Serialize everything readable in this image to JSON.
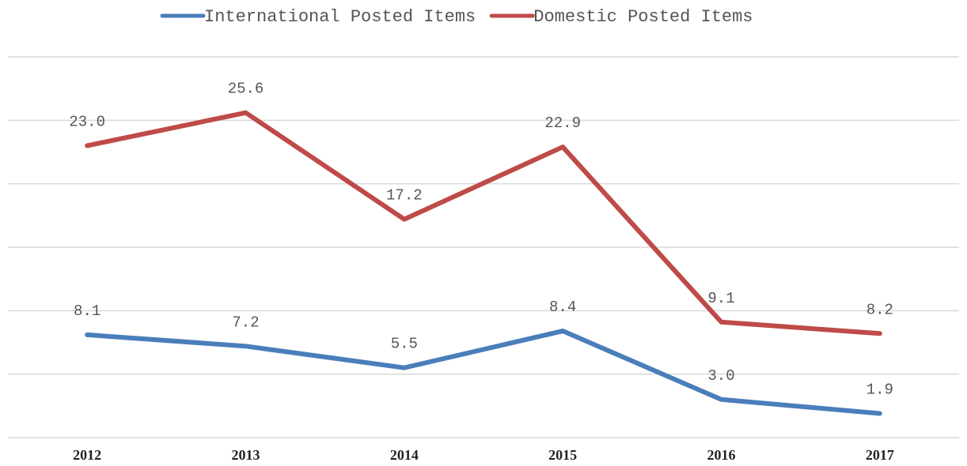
{
  "chart_data": {
    "type": "line",
    "categories": [
      "2012",
      "2013",
      "2014",
      "2015",
      "2016",
      "2017"
    ],
    "series": [
      {
        "name": "International Posted Items",
        "color": "#4a7ebb",
        "values": [
          8.1,
          7.2,
          5.5,
          8.4,
          3.0,
          1.9
        ],
        "value_labels": [
          "8.1",
          "7.2",
          "5.5",
          "8.4",
          "3.0",
          "1.9"
        ]
      },
      {
        "name": "Domestic Posted Items",
        "color": "#be4b48",
        "values": [
          23.0,
          25.6,
          17.2,
          22.9,
          9.1,
          8.2
        ],
        "value_labels": [
          "23.0",
          "25.6",
          "17.2",
          "22.9",
          "9.1",
          "8.2"
        ]
      }
    ],
    "ylim": [
      0,
      30
    ],
    "yticks": [
      0,
      5,
      10,
      15,
      20,
      25,
      30
    ],
    "grid": true,
    "legend": "top"
  }
}
